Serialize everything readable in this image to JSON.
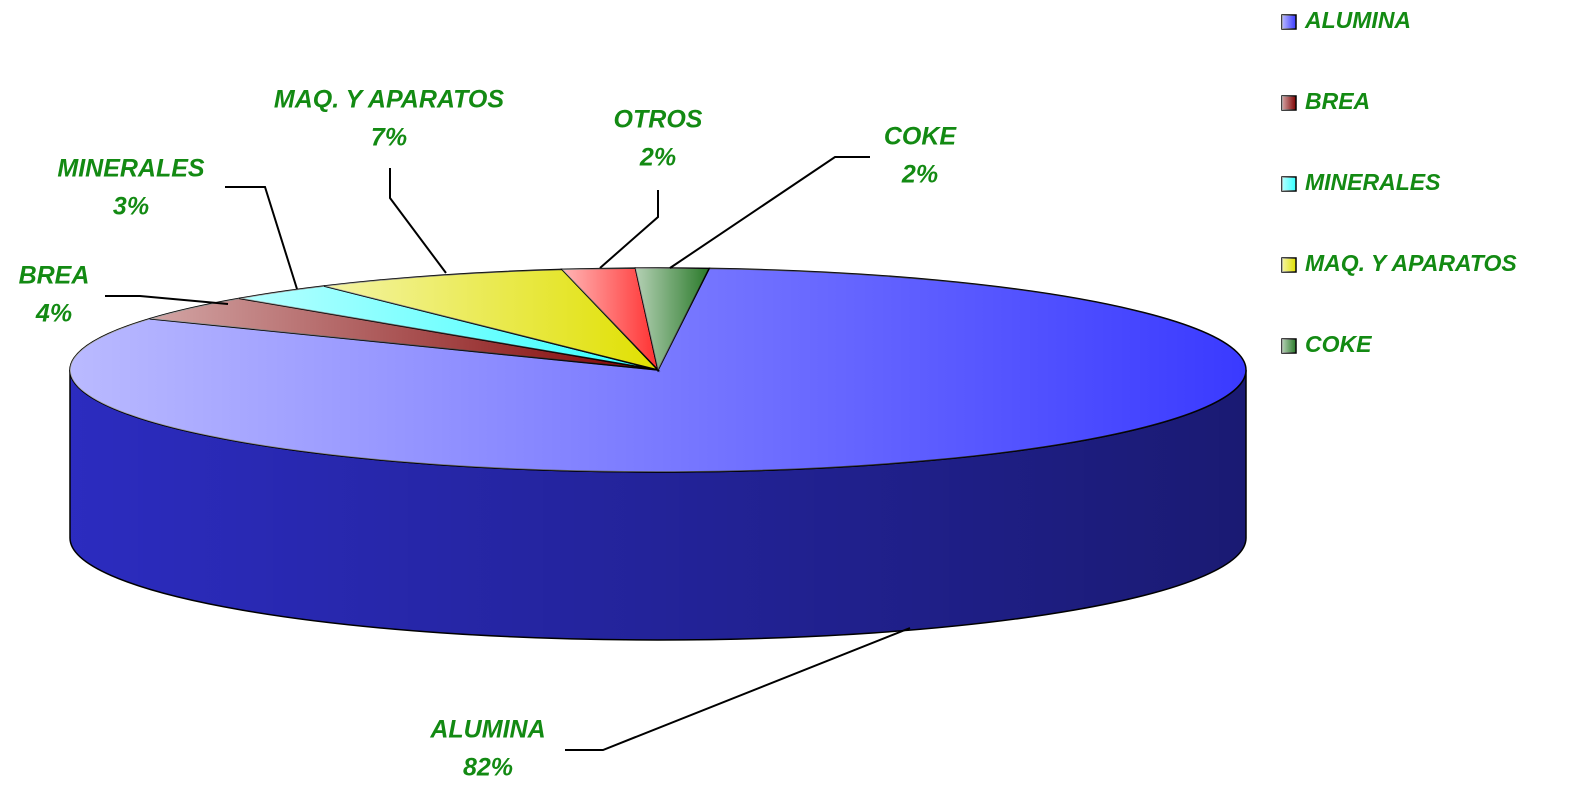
{
  "chart_data": {
    "type": "pie3d",
    "categories": [
      "ALUMINA",
      "BREA",
      "MINERALES",
      "MAQ. Y APARATOS",
      "OTROS",
      "COKE"
    ],
    "values": [
      82,
      4,
      3,
      7,
      2,
      2
    ],
    "value_labels": [
      "82%",
      "4%",
      "3%",
      "7%",
      "2%",
      "2%"
    ],
    "colors": [
      "#3a3aff",
      "#800000",
      "#33ffff",
      "#e0e000",
      "#ff3030",
      "#2a7a2a"
    ],
    "legend": [
      "ALUMINA",
      "BREA",
      "MINERALES",
      "MAQ. Y APARATOS",
      "COKE"
    ],
    "legend_position": "right"
  }
}
